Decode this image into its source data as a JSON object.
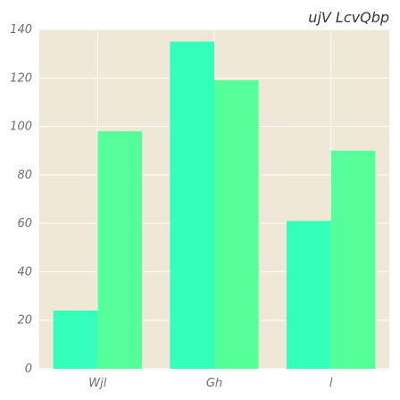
{
  "chart_data": {
    "type": "bar",
    "title": "ujV LcvQbp",
    "xlabel": "",
    "ylabel": "",
    "categories": [
      "Wjl",
      "Gh",
      "l"
    ],
    "series": [
      {
        "values": [
          24,
          135,
          61
        ],
        "color": "#33ffbb"
      },
      {
        "values": [
          98,
          119,
          90
        ],
        "color": "#55ff99"
      }
    ],
    "ylim": [
      0,
      140
    ],
    "yticks": [
      0,
      20,
      40,
      60,
      80,
      100,
      120,
      140
    ],
    "grid": true,
    "legend": "none",
    "colors": {
      "plot_background": "#efe8d6",
      "grid": "#ffffff"
    }
  }
}
